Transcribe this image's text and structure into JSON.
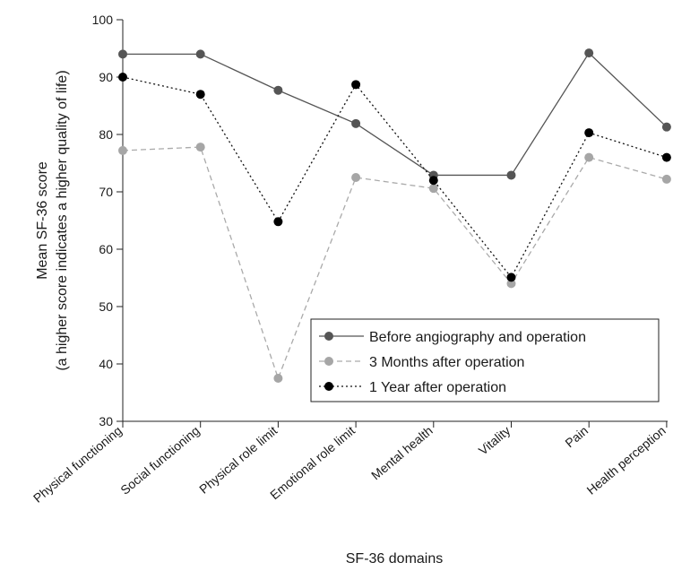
{
  "chart_data": {
    "type": "line",
    "title": "",
    "xlabel": "SF-36 domains",
    "ylabel_line1": "Mean SF-36 score",
    "ylabel_line2": "(a higher score indicates a higher quality of life)",
    "ylim": [
      30,
      100
    ],
    "yticks": [
      30,
      40,
      50,
      60,
      70,
      80,
      90,
      100
    ],
    "grid": false,
    "legend_position": "bottom-right",
    "categories": [
      "Physical functioning",
      "Social functioning",
      "Physical role limit",
      "Emotional role limit",
      "Mental health",
      "Vitality",
      "Pain",
      "Health perception"
    ],
    "series": [
      {
        "name": "Before angiography and operation",
        "values": [
          94,
          94,
          87.7,
          81.9,
          72.9,
          72.9,
          94.2,
          81.3
        ],
        "color": "#555555",
        "marker_color": "#555555",
        "line_style": "solid"
      },
      {
        "name": "3 Months after operation",
        "values": [
          77.2,
          77.8,
          37.5,
          72.5,
          70.6,
          54,
          76,
          72.2
        ],
        "color": "#aaaaaa",
        "marker_color": "#a6a6a6",
        "line_style": "dashed"
      },
      {
        "name": "1 Year after operation",
        "values": [
          90,
          87,
          64.8,
          88.7,
          72,
          55.1,
          80.3,
          76
        ],
        "color": "#111111",
        "marker_color": "#000000",
        "line_style": "dotted"
      }
    ]
  }
}
